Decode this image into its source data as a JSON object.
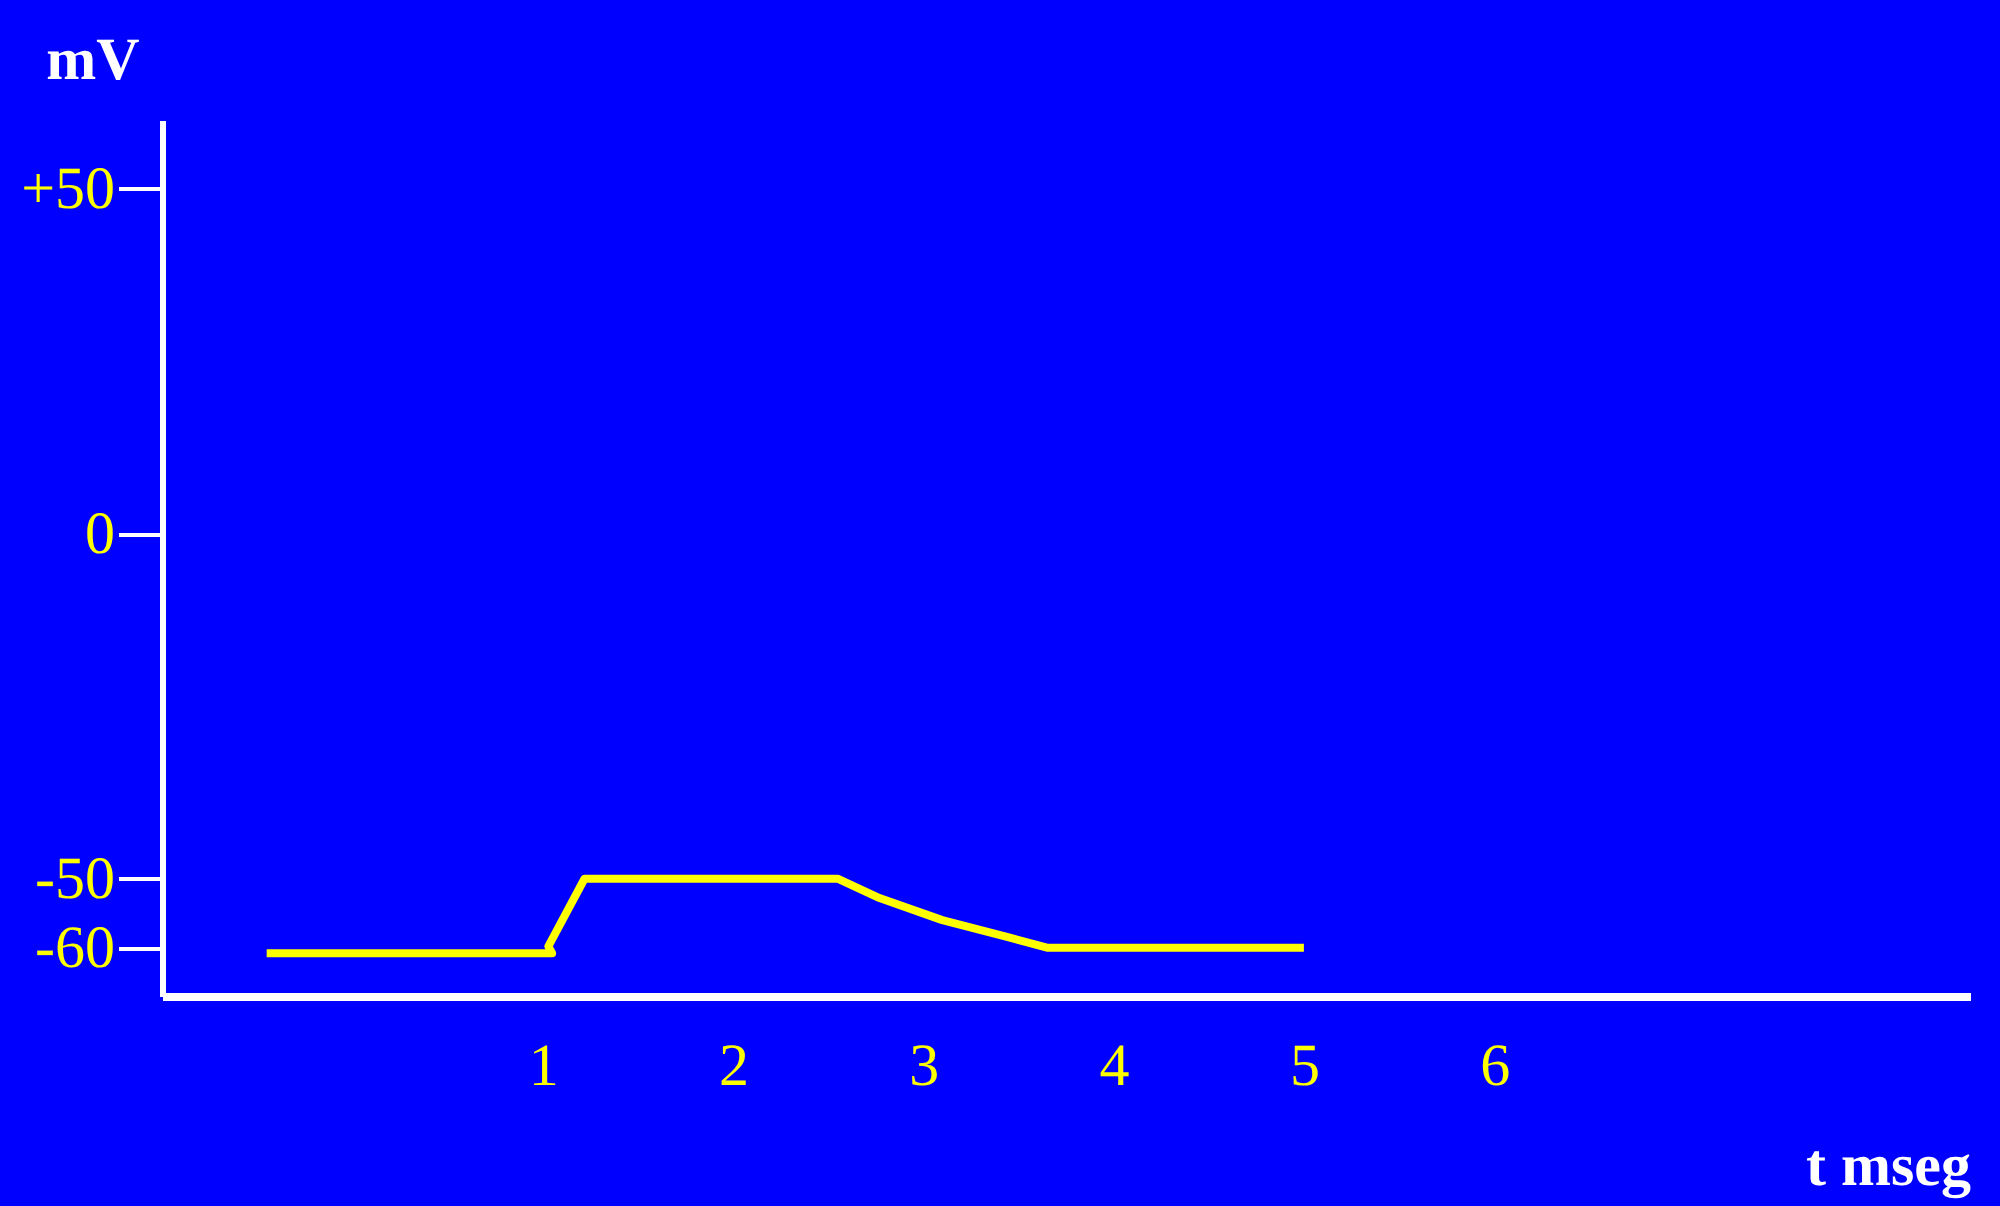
{
  "chart_data": {
    "type": "line",
    "xlabel": "t mseg",
    "ylabel": "mV",
    "series": [
      {
        "color": "#ffff00",
        "x": [
          -0.45,
          1.05,
          1.03,
          1.22,
          2.55,
          2.77,
          3.1,
          3.45,
          3.65,
          5.0
        ],
        "values": [
          -60.8,
          -60.8,
          -59.8,
          -50,
          -50,
          -52.8,
          -56,
          -58.5,
          -60,
          -60
        ]
      }
    ],
    "xlim": [
      -1,
      8.5
    ],
    "xticks": [
      1,
      2,
      3,
      4,
      5,
      6
    ],
    "ylim": [
      -67,
      60
    ],
    "yticks": [
      {
        "value": 50,
        "label": "+50"
      },
      0,
      -50,
      -60
    ],
    "grid": false,
    "marker": "none",
    "line_style": "solid"
  }
}
